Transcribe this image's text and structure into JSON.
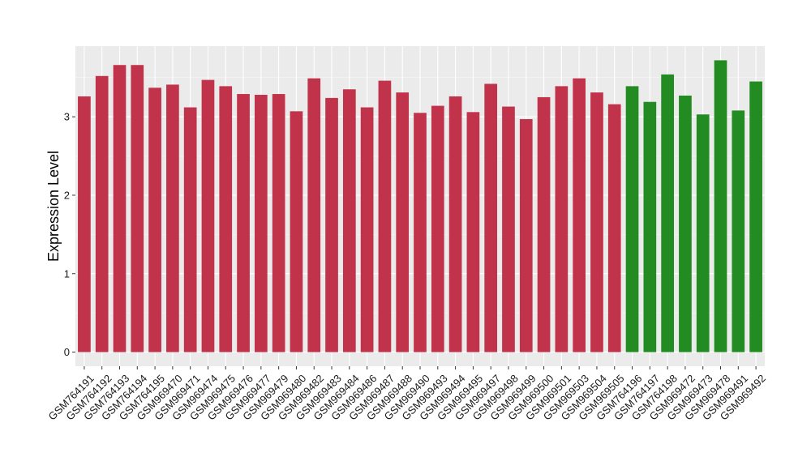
{
  "chart_data": {
    "type": "bar",
    "ylabel": "Expression Level",
    "xlabel": "",
    "ylim": [
      -0.18,
      3.9
    ],
    "yticks": [
      0,
      1,
      2,
      3
    ],
    "grid": true,
    "legend": "none",
    "colors": {
      "group_a": "#c0334a",
      "group_b": "#228b22",
      "panel_bg": "#ebebeb",
      "grid_major": "#ffffff",
      "grid_minor": "#f5f5f5"
    },
    "categories": [
      "GSM764191",
      "GSM764192",
      "GSM764193",
      "GSM764194",
      "GSM764195",
      "GSM969470",
      "GSM969471",
      "GSM969474",
      "GSM969475",
      "GSM969476",
      "GSM969477",
      "GSM969479",
      "GSM969480",
      "GSM969482",
      "GSM969483",
      "GSM969484",
      "GSM969486",
      "GSM969487",
      "GSM969488",
      "GSM969490",
      "GSM969493",
      "GSM969494",
      "GSM969495",
      "GSM969497",
      "GSM969498",
      "GSM969499",
      "GSM969500",
      "GSM969501",
      "GSM969503",
      "GSM969504",
      "GSM969505",
      "GSM764196",
      "GSM764197",
      "GSM764198",
      "GSM969472",
      "GSM969473",
      "GSM969478",
      "GSM969491",
      "GSM969492"
    ],
    "values": [
      3.26,
      3.52,
      3.66,
      3.66,
      3.37,
      3.41,
      3.12,
      3.47,
      3.39,
      3.29,
      3.28,
      3.29,
      3.07,
      3.49,
      3.24,
      3.35,
      3.12,
      3.46,
      3.31,
      3.05,
      3.14,
      3.26,
      3.06,
      3.42,
      3.13,
      2.97,
      3.25,
      3.39,
      3.49,
      3.31,
      3.16,
      3.39,
      3.19,
      3.54,
      3.27,
      3.03,
      3.72,
      3.08,
      3.45
    ],
    "groups": [
      "a",
      "a",
      "a",
      "a",
      "a",
      "a",
      "a",
      "a",
      "a",
      "a",
      "a",
      "a",
      "a",
      "a",
      "a",
      "a",
      "a",
      "a",
      "a",
      "a",
      "a",
      "a",
      "a",
      "a",
      "a",
      "a",
      "a",
      "a",
      "a",
      "a",
      "a",
      "b",
      "b",
      "b",
      "b",
      "b",
      "b",
      "b",
      "b"
    ]
  }
}
